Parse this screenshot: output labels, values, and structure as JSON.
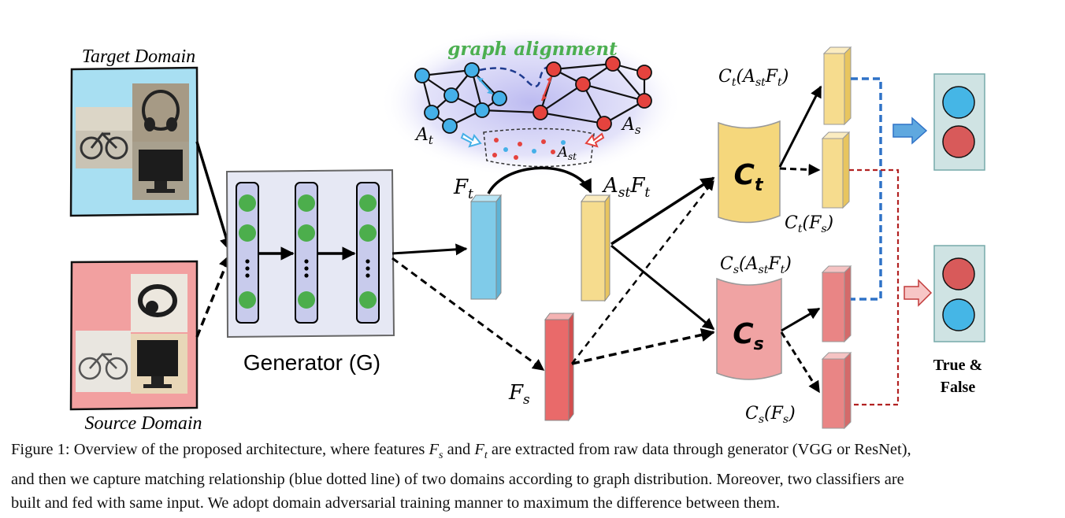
{
  "labels": {
    "target_domain": "Target Domain",
    "source_domain": "Source Domain",
    "generator": "Generator (G)",
    "graph_alignment": "graph alignment",
    "a_t": "A",
    "a_t_sub": "t",
    "a_s": "A",
    "a_s_sub": "s",
    "a_st": "A",
    "a_st_sub": "st",
    "f_t_main": "F",
    "f_t_sub": "t",
    "f_s_main": "F",
    "f_s_sub": "s",
    "ast_ft": {
      "a": "A",
      "st": "st",
      "f": "F",
      "t": "t"
    },
    "c_t_box": {
      "main": "C",
      "sub": "t"
    },
    "c_s_box": {
      "main": "C",
      "sub": "s"
    },
    "ct_astft": "C(AF)",
    "ct_fs": "C(F)",
    "cs_astft": "C(AF)",
    "cs_fs": "C(F)",
    "true_false_line1": "True &",
    "true_false_line2": "False"
  },
  "caption": {
    "line1_a": "Figure 1: Overview of the proposed architecture, where features ",
    "line1_fs": "F",
    "line1_fs_sub": "s",
    "line1_b": " and ",
    "line1_ft": "F",
    "line1_ft_sub": "t",
    "line1_c": " are extracted from raw data through generator (VGG or ResNet),",
    "line2": "and then we capture matching relationship (blue dotted line) of two domains according to graph distribution. Moreover, two classifiers are",
    "line3": "built and fed with same input. We adopt domain adversarial training manner to maximum the difference between them."
  },
  "colors": {
    "target_bg": "#a8dff2",
    "source_bg": "#f2a0a0",
    "generator_bg": "#e6e8f4",
    "node_green": "#4cae4c",
    "feature_blue": "#7fcbe9",
    "feature_yellow": "#f6dc8e",
    "feature_red": "#e96a6a",
    "classifier_yellow": "#f5d77c",
    "classifier_pink": "#f0a3a3",
    "graph_blue": "#45b0e8",
    "graph_red": "#e5433e",
    "graph_text_green": "#4caf50",
    "output_panel": "#cfe3e3",
    "dash_blue": "#2f72c7",
    "dash_red": "#b22222"
  }
}
